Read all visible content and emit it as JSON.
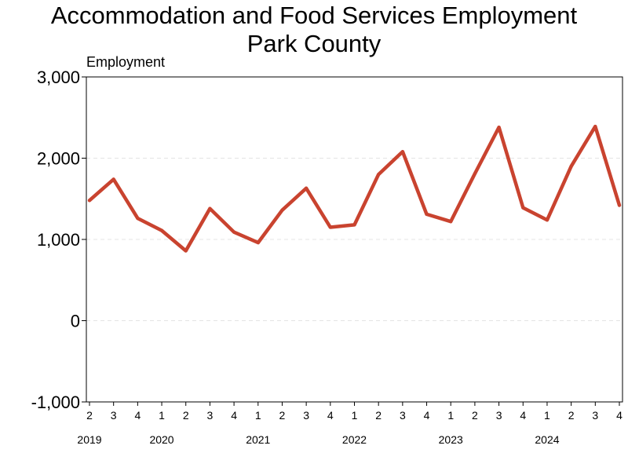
{
  "title": "Accommodation and Food Services Employment",
  "subtitle": "Park County",
  "chart_data": {
    "type": "line",
    "title": "Accommodation and Food Services Employment",
    "subtitle": "Park County",
    "ylabel": "Employment",
    "xlabel": "",
    "ylim": [
      -1000,
      3000
    ],
    "y_ticks": [
      -1000,
      0,
      1000,
      2000,
      3000
    ],
    "y_tick_labels": [
      "-1,000",
      "0",
      "1,000",
      "2,000",
      "3,000"
    ],
    "grid": "horizontal dashed",
    "quarters": [
      "2",
      "3",
      "4",
      "1",
      "2",
      "3",
      "4",
      "1",
      "2",
      "3",
      "4",
      "1",
      "2",
      "3",
      "4",
      "1",
      "2",
      "3",
      "4",
      "1",
      "2",
      "3",
      "4"
    ],
    "years": [
      {
        "label": "2019",
        "index": 0
      },
      {
        "label": "2020",
        "index": 3
      },
      {
        "label": "2021",
        "index": 7
      },
      {
        "label": "2022",
        "index": 11
      },
      {
        "label": "2023",
        "index": 15
      },
      {
        "label": "2024",
        "index": 19
      }
    ],
    "series": [
      {
        "color": "#c9432f",
        "values": [
          1480,
          1740,
          1260,
          1110,
          860,
          1380,
          1090,
          960,
          1360,
          1630,
          1150,
          1180,
          1800,
          2080,
          1310,
          1220,
          1810,
          2380,
          1390,
          1240,
          1900,
          2390,
          1420
        ]
      }
    ]
  }
}
